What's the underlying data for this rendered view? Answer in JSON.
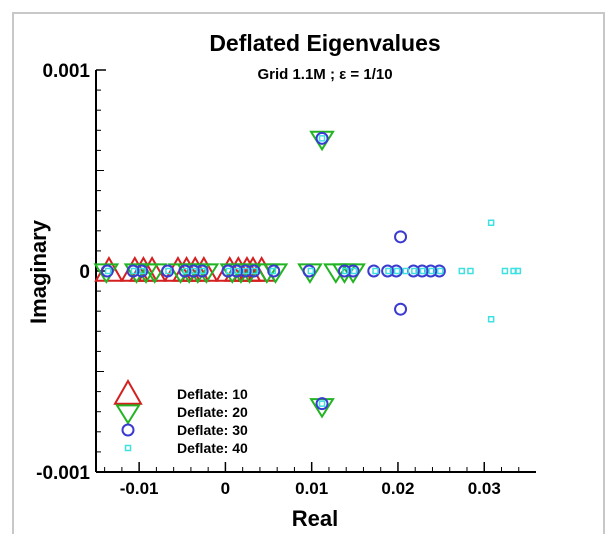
{
  "chart_data": {
    "type": "scatter",
    "title": "Deflated Eigenvalues",
    "subtitle": "Grid 1.1M ; ε = 1/10",
    "xlabel": "Real",
    "ylabel": "Imaginary",
    "xlim": [
      -0.015,
      0.036
    ],
    "ylim": [
      -0.001,
      0.001
    ],
    "x_ticks": [
      -0.01,
      0,
      0.01,
      0.02,
      0.03
    ],
    "x_tick_labels": [
      "-0.01",
      "0",
      "0.01",
      "0.02",
      "0.03"
    ],
    "y_ticks": [
      -0.001,
      0,
      0.001
    ],
    "y_tick_labels": [
      "-0.001",
      "0",
      "0.001"
    ],
    "legend_position": "bottom-left",
    "series": [
      {
        "name": "Deflate: 10",
        "marker": "triangle-up",
        "color": "#d42020",
        "points": [
          [
            -0.0135,
            0
          ],
          [
            -0.0105,
            0
          ],
          [
            -0.0095,
            0
          ],
          [
            -0.0085,
            0
          ],
          [
            -0.0055,
            0
          ],
          [
            -0.0045,
            0
          ],
          [
            -0.0035,
            0
          ],
          [
            -0.0025,
            0
          ],
          [
            0.0005,
            0
          ],
          [
            0.0015,
            0
          ],
          [
            0.0025,
            0
          ],
          [
            0.0032,
            0
          ],
          [
            0.0042,
            0
          ]
        ]
      },
      {
        "name": "Deflate: 20",
        "marker": "triangle-down",
        "color": "#22b422",
        "points": [
          [
            -0.0138,
            0
          ],
          [
            -0.0103,
            0
          ],
          [
            -0.0092,
            0
          ],
          [
            -0.0082,
            0
          ],
          [
            -0.0052,
            0
          ],
          [
            -0.0042,
            0
          ],
          [
            -0.0032,
            0
          ],
          [
            -0.0022,
            0
          ],
          [
            0.0008,
            0
          ],
          [
            0.0018,
            0
          ],
          [
            0.0028,
            0
          ],
          [
            0.0048,
            0
          ],
          [
            0.0058,
            0
          ],
          [
            0.0098,
            0
          ],
          [
            0.0128,
            0
          ],
          [
            0.0138,
            0
          ],
          [
            0.0148,
            0
          ],
          [
            0.0112,
            0.00066
          ],
          [
            0.0112,
            -0.00067
          ]
        ]
      },
      {
        "name": "Deflate: 30",
        "marker": "circle",
        "color": "#3a3ad0",
        "points": [
          [
            -0.0137,
            0
          ],
          [
            -0.0107,
            0
          ],
          [
            -0.0097,
            0
          ],
          [
            -0.0067,
            0
          ],
          [
            -0.0047,
            0
          ],
          [
            -0.0037,
            0
          ],
          [
            -0.0027,
            0
          ],
          [
            0.0003,
            0
          ],
          [
            0.0013,
            0
          ],
          [
            0.0023,
            0
          ],
          [
            0.0033,
            0
          ],
          [
            0.0056,
            0
          ],
          [
            0.0097,
            0
          ],
          [
            0.0138,
            0
          ],
          [
            0.0148,
            0
          ],
          [
            0.0172,
            0
          ],
          [
            0.0188,
            0
          ],
          [
            0.0198,
            0
          ],
          [
            0.0218,
            0
          ],
          [
            0.0228,
            0
          ],
          [
            0.0238,
            0
          ],
          [
            0.0248,
            0
          ],
          [
            0.0203,
            0.00017
          ],
          [
            0.0203,
            -0.00019
          ],
          [
            0.0112,
            0.00066
          ],
          [
            0.0112,
            -0.00066
          ]
        ]
      },
      {
        "name": "Deflate: 40",
        "marker": "square",
        "color": "#3fe0e0",
        "points": [
          [
            -0.0136,
            0
          ],
          [
            -0.0106,
            0
          ],
          [
            -0.0096,
            0
          ],
          [
            -0.0066,
            0
          ],
          [
            -0.0046,
            0
          ],
          [
            -0.0036,
            0
          ],
          [
            -0.0026,
            0
          ],
          [
            0.0004,
            0
          ],
          [
            0.0014,
            0
          ],
          [
            0.0024,
            0
          ],
          [
            0.0034,
            0
          ],
          [
            0.0055,
            0
          ],
          [
            0.0099,
            0
          ],
          [
            0.0139,
            0
          ],
          [
            0.0149,
            0
          ],
          [
            0.0174,
            0
          ],
          [
            0.0189,
            0
          ],
          [
            0.0199,
            0
          ],
          [
            0.0209,
            0
          ],
          [
            0.0219,
            0
          ],
          [
            0.0229,
            0
          ],
          [
            0.0239,
            0
          ],
          [
            0.0249,
            0
          ],
          [
            0.0274,
            0
          ],
          [
            0.0284,
            0
          ],
          [
            0.0324,
            0
          ],
          [
            0.0334,
            0
          ],
          [
            0.0339,
            0
          ],
          [
            0.0308,
            0.00024
          ],
          [
            0.0308,
            -0.00024
          ],
          [
            0.0112,
            0.00066
          ],
          [
            0.0112,
            -0.00066
          ]
        ]
      }
    ]
  }
}
